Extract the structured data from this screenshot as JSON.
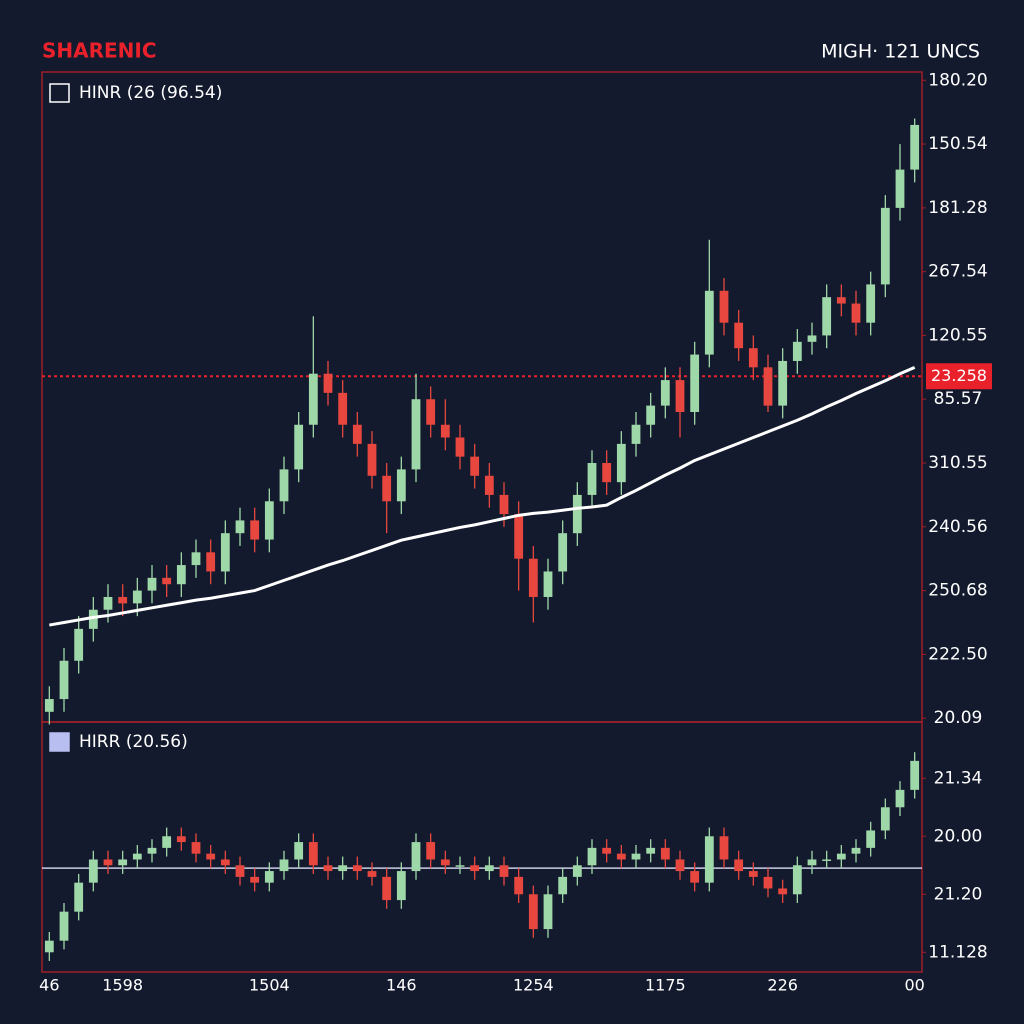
{
  "chart_data": [
    {
      "type": "candlestick",
      "title": "SHARENIC",
      "subtitle": "MIGH· 121 UNCS",
      "ylim": [
        -0.06,
        10.13
      ],
      "yticks": [
        {
          "value": 10,
          "label": "180.20"
        },
        {
          "value": 9,
          "label": "150.54"
        },
        {
          "value": 8,
          "label": "181.28"
        },
        {
          "value": 7,
          "label": "267.54"
        },
        {
          "value": 6,
          "label": "120.55"
        },
        {
          "value": 5,
          "label": "85.57"
        },
        {
          "value": 4,
          "label": "310.55"
        },
        {
          "value": 3,
          "label": "240.56"
        },
        {
          "value": 2,
          "label": "250.68"
        },
        {
          "value": 1,
          "label": "222.50"
        },
        {
          "value": 0,
          "label": "20.09"
        }
      ],
      "price_line": {
        "value": 5.36,
        "label": "23.258",
        "color": "#e8212b"
      },
      "series": [
        {
          "name": "HINR (26 (96.54)",
          "legend_color": "none",
          "up_color": "#9fd8a8",
          "down_color": "#e8473f",
          "open": [
            0.1,
            0.3,
            0.9,
            1.4,
            1.7,
            1.9,
            1.8,
            2.0,
            2.2,
            2.1,
            2.4,
            2.6,
            2.3,
            2.9,
            3.1,
            2.8,
            3.4,
            3.9,
            4.6,
            5.4,
            5.1,
            4.6,
            4.3,
            3.8,
            3.4,
            3.9,
            5.0,
            4.6,
            4.4,
            4.1,
            3.8,
            3.5,
            3.2,
            2.5,
            1.9,
            2.3,
            2.9,
            3.5,
            4.0,
            3.7,
            4.3,
            4.6,
            4.9,
            5.3,
            4.8,
            5.7,
            6.7,
            6.2,
            5.8,
            5.5,
            4.9,
            5.6,
            5.9,
            6.0,
            6.6,
            6.5,
            6.2,
            6.8,
            8.0,
            8.6
          ],
          "high": [
            0.5,
            1.1,
            1.6,
            1.9,
            2.1,
            2.1,
            2.2,
            2.4,
            2.4,
            2.6,
            2.8,
            2.8,
            3.1,
            3.3,
            3.3,
            3.6,
            4.1,
            4.8,
            6.3,
            5.6,
            5.3,
            4.8,
            4.5,
            4.0,
            4.1,
            5.4,
            5.2,
            5.0,
            4.6,
            4.3,
            4.0,
            3.7,
            3.4,
            2.7,
            2.5,
            3.1,
            3.7,
            4.2,
            4.2,
            4.5,
            4.8,
            5.1,
            5.5,
            5.5,
            5.9,
            7.5,
            6.9,
            6.4,
            6.0,
            5.7,
            5.8,
            6.1,
            6.2,
            6.8,
            6.8,
            6.7,
            7.0,
            8.2,
            9.0,
            9.4
          ],
          "low": [
            -0.1,
            0.1,
            0.7,
            1.2,
            1.5,
            1.6,
            1.6,
            1.8,
            1.9,
            1.9,
            2.2,
            2.1,
            2.1,
            2.7,
            2.6,
            2.6,
            3.2,
            3.7,
            4.4,
            4.9,
            4.4,
            4.1,
            3.6,
            2.9,
            3.2,
            3.7,
            4.4,
            4.2,
            3.9,
            3.6,
            3.3,
            3.0,
            2.0,
            1.5,
            1.7,
            2.1,
            2.7,
            3.3,
            3.5,
            3.5,
            4.1,
            4.4,
            4.7,
            4.4,
            4.6,
            5.5,
            6.0,
            5.6,
            5.3,
            4.8,
            4.7,
            5.4,
            5.7,
            5.8,
            6.3,
            6.0,
            6.0,
            6.6,
            7.8,
            8.4
          ],
          "close": [
            0.3,
            0.9,
            1.4,
            1.7,
            1.9,
            1.8,
            2.0,
            2.2,
            2.1,
            2.4,
            2.6,
            2.3,
            2.9,
            3.1,
            2.8,
            3.4,
            3.9,
            4.6,
            5.4,
            5.1,
            4.6,
            4.3,
            3.8,
            3.4,
            3.9,
            5.0,
            4.6,
            4.4,
            4.1,
            3.8,
            3.5,
            3.2,
            2.5,
            1.9,
            2.3,
            2.9,
            3.5,
            4.0,
            3.7,
            4.3,
            4.6,
            4.9,
            5.3,
            4.8,
            5.7,
            6.7,
            6.2,
            5.8,
            5.5,
            4.9,
            5.6,
            5.9,
            6.0,
            6.6,
            6.5,
            6.2,
            6.8,
            8.0,
            8.6,
            9.3
          ]
        },
        {
          "type": "line",
          "color": "#ffffff",
          "values": [
            1.46,
            1.5,
            1.54,
            1.58,
            1.61,
            1.65,
            1.69,
            1.73,
            1.77,
            1.81,
            1.85,
            1.88,
            1.92,
            1.96,
            2.0,
            2.08,
            2.16,
            2.24,
            2.32,
            2.4,
            2.47,
            2.55,
            2.63,
            2.71,
            2.79,
            2.84,
            2.89,
            2.94,
            2.99,
            3.03,
            3.08,
            3.13,
            3.18,
            3.21,
            3.23,
            3.26,
            3.29,
            3.31,
            3.34,
            3.46,
            3.57,
            3.69,
            3.81,
            3.92,
            4.04,
            4.13,
            4.22,
            4.31,
            4.4,
            4.49,
            4.58,
            4.67,
            4.77,
            4.88,
            4.98,
            5.09,
            5.19,
            5.29,
            5.4,
            5.5
          ]
        }
      ]
    },
    {
      "type": "candlestick",
      "ylim": [
        -0.34,
        3.97
      ],
      "yticks": [
        {
          "value": 3,
          "label": "21.34"
        },
        {
          "value": 2,
          "label": "20.00"
        },
        {
          "value": 1,
          "label": "21.20"
        },
        {
          "value": 0,
          "label": "11.128"
        }
      ],
      "hline": {
        "value": 1.45,
        "color": "#c9cde6"
      },
      "categories": [
        "46",
        null,
        null,
        null,
        null,
        "1598",
        null,
        null,
        null,
        null,
        null,
        null,
        null,
        null,
        null,
        "1504",
        null,
        null,
        null,
        null,
        null,
        null,
        null,
        null,
        "146",
        null,
        null,
        null,
        null,
        null,
        null,
        null,
        null,
        "1254",
        null,
        null,
        null,
        null,
        null,
        null,
        null,
        null,
        "1175",
        null,
        null,
        null,
        null,
        null,
        null,
        null,
        "226",
        null,
        null,
        null,
        null,
        null,
        null,
        null,
        null,
        "00"
      ],
      "series": [
        {
          "name": "HIRR (20.56)",
          "legend_color": "#b8bff0",
          "up_color": "#9fd8a8",
          "down_color": "#e8473f",
          "open": [
            0.0,
            0.2,
            0.7,
            1.2,
            1.6,
            1.5,
            1.6,
            1.7,
            1.8,
            2.0,
            1.9,
            1.7,
            1.6,
            1.5,
            1.3,
            1.2,
            1.4,
            1.6,
            1.9,
            1.5,
            1.4,
            1.5,
            1.4,
            1.3,
            0.9,
            1.4,
            1.9,
            1.6,
            1.5,
            1.5,
            1.4,
            1.5,
            1.3,
            1.0,
            0.4,
            1.0,
            1.3,
            1.5,
            1.8,
            1.7,
            1.6,
            1.7,
            1.8,
            1.6,
            1.4,
            1.2,
            2.0,
            1.6,
            1.4,
            1.3,
            1.1,
            1.0,
            1.5,
            1.6,
            1.6,
            1.7,
            1.8,
            2.1,
            2.5,
            2.8
          ],
          "high": [
            0.35,
            0.85,
            1.35,
            1.75,
            1.75,
            1.75,
            1.85,
            1.95,
            2.15,
            2.15,
            2.05,
            1.85,
            1.75,
            1.65,
            1.45,
            1.55,
            1.75,
            2.05,
            2.05,
            1.65,
            1.65,
            1.65,
            1.55,
            1.45,
            1.55,
            2.05,
            2.05,
            1.75,
            1.65,
            1.65,
            1.65,
            1.65,
            1.45,
            1.15,
            1.15,
            1.45,
            1.65,
            1.95,
            1.95,
            1.85,
            1.85,
            1.95,
            1.95,
            1.75,
            1.55,
            2.15,
            2.15,
            1.75,
            1.55,
            1.45,
            1.25,
            1.65,
            1.75,
            1.75,
            1.85,
            1.95,
            2.25,
            2.65,
            2.95,
            3.45
          ],
          "low": [
            -0.15,
            0.05,
            0.55,
            1.05,
            1.35,
            1.35,
            1.45,
            1.55,
            1.65,
            1.75,
            1.55,
            1.45,
            1.35,
            1.15,
            1.05,
            1.05,
            1.25,
            1.45,
            1.35,
            1.25,
            1.25,
            1.25,
            1.15,
            0.75,
            0.75,
            1.25,
            1.45,
            1.35,
            1.35,
            1.25,
            1.25,
            1.15,
            0.85,
            0.25,
            0.25,
            0.85,
            1.15,
            1.35,
            1.55,
            1.45,
            1.45,
            1.55,
            1.45,
            1.25,
            1.05,
            1.05,
            1.45,
            1.25,
            1.15,
            0.95,
            0.85,
            0.85,
            1.35,
            1.45,
            1.45,
            1.55,
            1.65,
            1.95,
            2.35,
            2.65
          ],
          "close": [
            0.2,
            0.7,
            1.2,
            1.6,
            1.5,
            1.6,
            1.7,
            1.8,
            2.0,
            1.9,
            1.7,
            1.6,
            1.5,
            1.3,
            1.2,
            1.4,
            1.6,
            1.9,
            1.5,
            1.4,
            1.5,
            1.4,
            1.3,
            0.9,
            1.4,
            1.9,
            1.6,
            1.5,
            1.5,
            1.4,
            1.5,
            1.3,
            1.0,
            0.4,
            1.0,
            1.3,
            1.5,
            1.8,
            1.7,
            1.6,
            1.7,
            1.8,
            1.6,
            1.4,
            1.2,
            2.0,
            1.6,
            1.4,
            1.3,
            1.1,
            1.0,
            1.5,
            1.6,
            1.6,
            1.7,
            1.8,
            2.1,
            2.5,
            2.8,
            3.3
          ]
        }
      ]
    }
  ]
}
